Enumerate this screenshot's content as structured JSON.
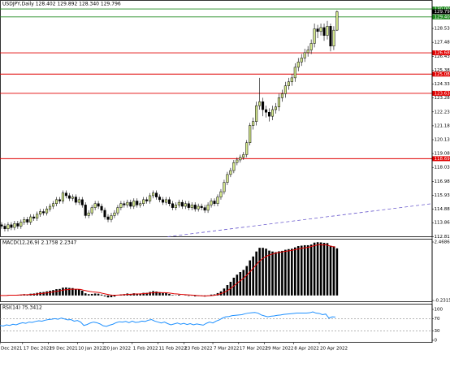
{
  "chart_data": [
    {
      "type": "candlestick",
      "title": "USDJPY,Daily  128.402 129.892 128.340 129.796",
      "up_color": "#d4e88c",
      "down_color": "#000000",
      "wick_color": "#000000",
      "xlim": [
        0,
        134
      ],
      "ylim": [
        112.77,
        130.68
      ],
      "yticks": [
        {
          "value": 128.53,
          "label": "128.530"
        },
        {
          "value": 127.48,
          "label": "127.480"
        },
        {
          "value": 126.43,
          "label": "126.430"
        },
        {
          "value": 125.38,
          "label": "125.380"
        },
        {
          "value": 124.33,
          "label": "124.330"
        },
        {
          "value": 123.28,
          "label": "123.280"
        },
        {
          "value": 122.23,
          "label": "122.230"
        },
        {
          "value": 121.18,
          "label": "121.180"
        },
        {
          "value": 120.13,
          "label": "120.130"
        },
        {
          "value": 119.08,
          "label": "119.080"
        },
        {
          "value": 118.03,
          "label": "118.030"
        },
        {
          "value": 116.98,
          "label": "116.980"
        },
        {
          "value": 115.93,
          "label": "115.930"
        },
        {
          "value": 114.88,
          "label": "114.880"
        },
        {
          "value": 113.86,
          "label": "113.860"
        },
        {
          "value": 112.81,
          "label": "112.810"
        }
      ],
      "levels": [
        {
          "value": 130,
          "label": "130.000",
          "color": "#1f8a1f"
        },
        {
          "value": 129.403,
          "color": "#1f8a1f"
        },
        {
          "value": 126.689,
          "color": "#e00000"
        },
        {
          "value": 125.083,
          "color": "#e00000"
        },
        {
          "value": 123.631,
          "color": "#e00000"
        },
        {
          "value": 118.696,
          "color": "#e00000"
        }
      ],
      "trendline": {
        "x": [
          52,
          134
        ],
        "y": [
          112.8,
          115.3
        ],
        "color": "#6a5acd"
      },
      "open": [
        113.7,
        113.6,
        113.4,
        113.7,
        113.5,
        113.8,
        113.6,
        113.9,
        114.1,
        113.9,
        114.3,
        114.2,
        114.5,
        114.7,
        114.6,
        114.9,
        115.1,
        115.3,
        115.6,
        115.5,
        116.1,
        115.9,
        115.7,
        115.8,
        115.4,
        115.6,
        115.2,
        114.4,
        114.6,
        115.0,
        115.3,
        115.1,
        114.8,
        114.3,
        114.1,
        114.4,
        114.6,
        115.0,
        115.3,
        115.2,
        115.4,
        115.1,
        115.5,
        115.2,
        115.3,
        115.6,
        115.5,
        115.9,
        116.1,
        115.8,
        115.6,
        115.4,
        115.6,
        115.3,
        115.0,
        115.2,
        115.4,
        115.1,
        115.3,
        115.0,
        115.2,
        114.9,
        115.1,
        115.0,
        114.8,
        115.2,
        115.5,
        115.3,
        115.8,
        116.2,
        116.9,
        117.5,
        117.8,
        118.4,
        118.6,
        118.8,
        119.0,
        119.9,
        121.2,
        121.5,
        122.7,
        123.0,
        122.4,
        122.2,
        121.9,
        122.4,
        122.6,
        123.3,
        123.6,
        124.2,
        124.5,
        124.8,
        125.6,
        126.0,
        126.3,
        126.7,
        126.9,
        127.4,
        128.5,
        128.3,
        128.6,
        128.0,
        128.7,
        127.2,
        128.402
      ],
      "high": [
        113.9,
        113.8,
        113.9,
        113.9,
        114.0,
        114.0,
        114.1,
        114.3,
        114.3,
        114.5,
        114.5,
        114.7,
        114.9,
        114.9,
        115.1,
        115.3,
        115.5,
        115.8,
        115.8,
        116.3,
        116.3,
        116.1,
        116.0,
        116.0,
        115.8,
        115.8,
        115.4,
        114.8,
        115.2,
        115.5,
        115.5,
        115.3,
        115.0,
        114.5,
        114.6,
        114.8,
        115.2,
        115.5,
        115.5,
        115.6,
        115.6,
        115.7,
        115.7,
        115.5,
        115.8,
        115.8,
        116.1,
        116.3,
        116.3,
        116.0,
        115.8,
        115.8,
        115.8,
        115.5,
        115.4,
        115.6,
        115.6,
        115.5,
        115.5,
        115.4,
        115.4,
        115.3,
        115.3,
        115.2,
        115.4,
        115.7,
        115.7,
        116.0,
        116.4,
        117.1,
        117.7,
        118.0,
        118.6,
        118.8,
        119.0,
        119.2,
        120.1,
        121.4,
        121.8,
        123.0,
        124.8,
        123.3,
        122.7,
        122.5,
        122.7,
        122.9,
        123.6,
        123.9,
        124.5,
        124.8,
        125.1,
        125.9,
        126.3,
        126.6,
        127.0,
        127.2,
        127.7,
        128.9,
        128.8,
        128.9,
        128.9,
        129.1,
        128.9,
        128.7,
        129.892
      ],
      "low": [
        113.4,
        113.2,
        113.2,
        113.3,
        113.3,
        113.4,
        113.4,
        113.7,
        113.7,
        113.7,
        114.0,
        114.0,
        114.3,
        114.4,
        114.4,
        114.7,
        114.9,
        115.1,
        115.3,
        115.3,
        115.7,
        115.5,
        115.5,
        115.2,
        115.2,
        115.0,
        114.2,
        114.2,
        114.4,
        114.8,
        114.9,
        114.6,
        114.1,
        113.9,
        113.9,
        114.2,
        114.4,
        114.8,
        115.0,
        115.0,
        114.9,
        114.9,
        115.0,
        115.0,
        115.1,
        115.3,
        115.3,
        115.7,
        115.6,
        115.4,
        115.2,
        115.2,
        115.1,
        114.8,
        114.8,
        115.0,
        114.9,
        114.9,
        114.8,
        114.8,
        114.7,
        114.7,
        114.8,
        114.6,
        114.6,
        115.0,
        115.1,
        115.1,
        115.6,
        116.0,
        116.7,
        117.3,
        117.6,
        118.2,
        118.4,
        118.6,
        118.8,
        119.7,
        120.9,
        121.2,
        122.4,
        121.9,
        121.8,
        121.5,
        121.6,
        122.1,
        122.3,
        123.0,
        123.3,
        123.9,
        124.2,
        124.5,
        125.3,
        125.7,
        126.0,
        126.4,
        126.6,
        127.1,
        127.8,
        128.0,
        127.6,
        127.7,
        126.8,
        126.9,
        128.34
      ],
      "close": [
        113.6,
        113.4,
        113.7,
        113.5,
        113.8,
        113.6,
        113.9,
        114.1,
        113.9,
        114.3,
        114.2,
        114.5,
        114.7,
        114.6,
        114.9,
        115.1,
        115.3,
        115.6,
        115.5,
        116.1,
        115.9,
        115.7,
        115.8,
        115.4,
        115.6,
        115.2,
        114.4,
        114.6,
        115.0,
        115.3,
        115.1,
        114.8,
        114.3,
        114.1,
        114.4,
        114.6,
        115.0,
        115.3,
        115.2,
        115.4,
        115.1,
        115.5,
        115.2,
        115.3,
        115.6,
        115.5,
        115.9,
        116.1,
        115.8,
        115.6,
        115.4,
        115.6,
        115.3,
        115.0,
        115.2,
        115.4,
        115.1,
        115.3,
        115.0,
        115.2,
        114.9,
        115.1,
        115.0,
        114.8,
        115.2,
        115.5,
        115.3,
        115.8,
        116.2,
        116.9,
        117.5,
        117.8,
        118.4,
        118.6,
        118.8,
        119.0,
        119.9,
        121.2,
        121.5,
        122.7,
        123.0,
        122.4,
        122.2,
        121.9,
        122.4,
        122.6,
        123.3,
        123.6,
        124.2,
        124.5,
        124.8,
        125.6,
        126.0,
        126.3,
        126.7,
        126.9,
        127.4,
        128.5,
        128.3,
        128.6,
        128.0,
        128.7,
        127.2,
        128.4,
        129.796
      ]
    },
    {
      "type": "macd",
      "title": "MACD(12,26,9) 2.1758 2.2347",
      "xlim": [
        0,
        134
      ],
      "ylim": [
        -0.2315,
        2.4686
      ],
      "yticks": [
        2.4686,
        -0.2315
      ],
      "series": [
        {
          "type": "bar",
          "color": "#000000",
          "values": [
            0.0,
            0.0,
            0.02,
            0.01,
            0.03,
            0.02,
            0.04,
            0.06,
            0.05,
            0.08,
            0.09,
            0.12,
            0.15,
            0.16,
            0.19,
            0.22,
            0.25,
            0.29,
            0.3,
            0.36,
            0.37,
            0.35,
            0.34,
            0.29,
            0.28,
            0.22,
            0.1,
            0.06,
            0.07,
            0.09,
            0.08,
            0.04,
            -0.04,
            -0.09,
            -0.08,
            -0.05,
            0.0,
            0.05,
            0.06,
            0.09,
            0.07,
            0.1,
            0.09,
            0.09,
            0.12,
            0.12,
            0.16,
            0.2,
            0.18,
            0.15,
            0.11,
            0.11,
            0.07,
            0.02,
            0.01,
            0.03,
            0.0,
            0.01,
            -0.02,
            -0.01,
            -0.04,
            -0.03,
            -0.03,
            -0.05,
            -0.01,
            0.04,
            0.05,
            0.11,
            0.19,
            0.32,
            0.48,
            0.63,
            0.82,
            0.96,
            1.08,
            1.18,
            1.36,
            1.62,
            1.8,
            2.03,
            2.2,
            2.2,
            2.16,
            2.07,
            2.03,
            2.0,
            2.04,
            2.06,
            2.11,
            2.14,
            2.16,
            2.22,
            2.28,
            2.3,
            2.32,
            2.32,
            2.35,
            2.44,
            2.46,
            2.45,
            2.43,
            2.42,
            2.3,
            2.27,
            2.1758
          ]
        },
        {
          "type": "line",
          "color": "#e00000",
          "values": [
            0.0,
            0.0,
            0.0,
            0.01,
            0.01,
            0.01,
            0.02,
            0.03,
            0.03,
            0.04,
            0.05,
            0.06,
            0.08,
            0.09,
            0.11,
            0.13,
            0.15,
            0.18,
            0.2,
            0.23,
            0.26,
            0.27,
            0.29,
            0.29,
            0.29,
            0.28,
            0.24,
            0.21,
            0.18,
            0.16,
            0.15,
            0.13,
            0.09,
            0.06,
            0.03,
            0.01,
            0.01,
            0.02,
            0.03,
            0.04,
            0.05,
            0.06,
            0.07,
            0.07,
            0.08,
            0.09,
            0.1,
            0.12,
            0.13,
            0.14,
            0.13,
            0.13,
            0.12,
            0.1,
            0.08,
            0.07,
            0.05,
            0.04,
            0.03,
            0.02,
            0.01,
            0.0,
            -0.01,
            -0.02,
            -0.02,
            -0.01,
            0.0,
            0.02,
            0.06,
            0.11,
            0.18,
            0.27,
            0.38,
            0.5,
            0.62,
            0.73,
            0.86,
            1.01,
            1.17,
            1.34,
            1.51,
            1.65,
            1.76,
            1.84,
            1.89,
            1.94,
            1.97,
            2.0,
            2.03,
            2.05,
            2.07,
            2.1,
            2.13,
            2.16,
            2.19,
            2.21,
            2.24,
            2.28,
            2.32,
            2.35,
            2.33,
            2.34,
            2.3,
            2.26,
            2.2347
          ]
        }
      ]
    },
    {
      "type": "line",
      "title": "RSI(14) 75.3412",
      "xlim": [
        0,
        134
      ],
      "ylim": [
        0,
        100
      ],
      "yticks": [
        100,
        70,
        30,
        0
      ],
      "xticks": [
        {
          "value": 0,
          "label": "Dec 2021"
        },
        {
          "value": 7,
          "label": "17 Dec 2021"
        },
        {
          "value": 15,
          "label": "29 Dec 2021"
        },
        {
          "value": 24,
          "label": "10 Jan 2022"
        },
        {
          "value": 32,
          "label": "20 Jan 2022"
        },
        {
          "value": 41,
          "label": "1 Feb 2022"
        },
        {
          "value": 49,
          "label": "11 Feb 2022"
        },
        {
          "value": 57,
          "label": "23 Feb 2022"
        },
        {
          "value": 66,
          "label": "7 Mar 2022"
        },
        {
          "value": 74,
          "label": "17 Mar 2022"
        },
        {
          "value": 82,
          "label": "29 Mar 2022"
        },
        {
          "value": 91,
          "label": "8 Apr 2022"
        },
        {
          "value": 99,
          "label": "20 Apr 2022"
        }
      ],
      "series": [
        {
          "color": "#1e90ff",
          "values": [
            48,
            46,
            50,
            48,
            52,
            50,
            54,
            57,
            55,
            59,
            58,
            61,
            63,
            62,
            65,
            67,
            68,
            70,
            68,
            72,
            69,
            66,
            67,
            62,
            64,
            59,
            48,
            51,
            56,
            59,
            57,
            53,
            47,
            45,
            49,
            52,
            57,
            60,
            59,
            61,
            57,
            62,
            58,
            59,
            62,
            61,
            65,
            67,
            62,
            59,
            56,
            59,
            54,
            50,
            53,
            56,
            52,
            55,
            51,
            54,
            50,
            53,
            51,
            49,
            55,
            59,
            56,
            62,
            66,
            72,
            76,
            77,
            80,
            81,
            82,
            83,
            86,
            88,
            89,
            90,
            88,
            82,
            79,
            76,
            78,
            79,
            81,
            82,
            84,
            85,
            86,
            87,
            88,
            88,
            88,
            88,
            89,
            92,
            88,
            87,
            83,
            85,
            72,
            76,
            75.3412
          ]
        }
      ]
    }
  ]
}
